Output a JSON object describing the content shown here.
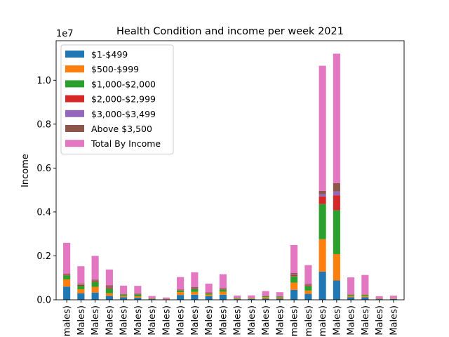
{
  "chart_data": {
    "type": "bar",
    "stacked": true,
    "title": "Health Condition and income per week 2021",
    "xlabel": "",
    "ylabel": "Income",
    "y_offset_label": "1e7",
    "ylim": [
      0,
      11800000
    ],
    "y_ticks": [
      0,
      2000000,
      4000000,
      6000000,
      8000000,
      10000000
    ],
    "y_tick_labels": [
      "0.0",
      "0.2",
      "0.4",
      "0.6",
      "0.8",
      "1.0"
    ],
    "category_tick_labels": [
      "males)",
      "Males)",
      "Males)",
      "Males)",
      "Males)",
      "Males)",
      "Males)",
      "Males)",
      "Males)",
      "Males)",
      "Males)",
      "Males)",
      "Males)",
      "Males)",
      "Males)",
      "Males)",
      "males)",
      "males)",
      "males)",
      "Males)",
      "Males)",
      "Males)",
      "Males)",
      "Males)"
    ],
    "legend_position": "upper-left",
    "colors": [
      "#1f77b4",
      "#ff7f0e",
      "#2ca02c",
      "#d62728",
      "#9467bd",
      "#8c564b",
      "#e377c2"
    ],
    "series": [
      {
        "name": "$1-$499",
        "values": [
          600000,
          300000,
          330000,
          180000,
          120000,
          100000,
          30000,
          20000,
          220000,
          230000,
          170000,
          230000,
          30000,
          40000,
          60000,
          60000,
          450000,
          270000,
          1280000,
          880000,
          120000,
          120000,
          30000,
          40000
        ]
      },
      {
        "name": "$500-$999",
        "values": [
          330000,
          180000,
          260000,
          120000,
          60000,
          60000,
          15000,
          10000,
          130000,
          130000,
          70000,
          140000,
          25000,
          25000,
          60000,
          50000,
          330000,
          150000,
          1480000,
          1200000,
          60000,
          60000,
          15000,
          20000
        ]
      },
      {
        "name": "$1,000-$2,000",
        "values": [
          180000,
          160000,
          230000,
          220000,
          60000,
          90000,
          20000,
          10000,
          70000,
          140000,
          50000,
          100000,
          25000,
          15000,
          45000,
          40000,
          300000,
          200000,
          1600000,
          2000000,
          50000,
          50000,
          15000,
          10000
        ]
      },
      {
        "name": "$2,000-$2,999",
        "values": [
          30000,
          40000,
          40000,
          50000,
          10000,
          20000,
          3000,
          2000,
          20000,
          30000,
          20000,
          30000,
          5000,
          4000,
          10000,
          8000,
          50000,
          40000,
          350000,
          680000,
          10000,
          10000,
          3000,
          3000
        ]
      },
      {
        "name": "$3,000-$3,499",
        "values": [
          15000,
          15000,
          15000,
          25000,
          5000,
          5000,
          1000,
          1000,
          10000,
          15000,
          8000,
          10000,
          2000,
          2000,
          4000,
          3000,
          25000,
          20000,
          100000,
          170000,
          5000,
          5000,
          1000,
          1000
        ]
      },
      {
        "name": "Above $3,500",
        "values": [
          40000,
          45000,
          45000,
          65000,
          10000,
          10000,
          3000,
          2000,
          25000,
          30000,
          17000,
          25000,
          3000,
          3000,
          7000,
          5000,
          60000,
          50000,
          150000,
          380000,
          5000,
          5000,
          3000,
          3000
        ]
      },
      {
        "name": "Total By Income",
        "values": [
          1400000,
          790000,
          1080000,
          720000,
          380000,
          350000,
          100000,
          60000,
          560000,
          680000,
          400000,
          630000,
          100000,
          110000,
          210000,
          180000,
          1280000,
          850000,
          5700000,
          5900000,
          770000,
          880000,
          100000,
          110000
        ]
      }
    ]
  }
}
